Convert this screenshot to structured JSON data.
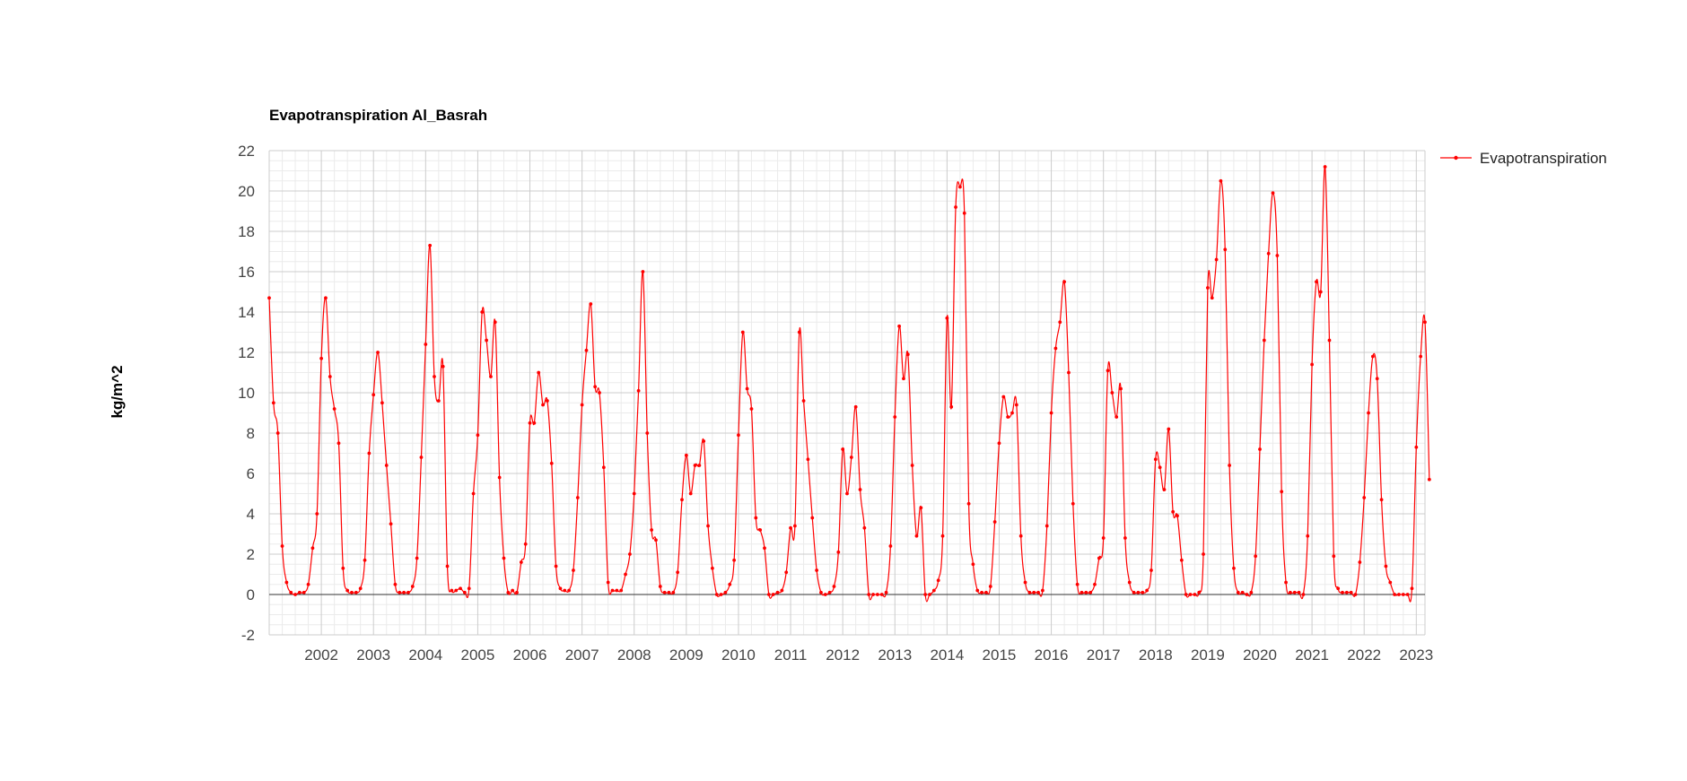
{
  "chart_data": {
    "type": "line",
    "title": "Evapotranspiration Al_Basrah",
    "ylabel": "kg/m^2",
    "xlabel": "",
    "x_ticks": [
      "2002",
      "2003",
      "2004",
      "2005",
      "2006",
      "2007",
      "2008",
      "2009",
      "2010",
      "2011",
      "2012",
      "2013",
      "2014",
      "2015",
      "2016",
      "2017",
      "2018",
      "2019",
      "2020",
      "2021",
      "2022",
      "2023"
    ],
    "y_ticks": [
      "-2",
      "0",
      "2",
      "4",
      "6",
      "8",
      "10",
      "12",
      "14",
      "16",
      "18",
      "20",
      "22"
    ],
    "ylim": [
      -2,
      22
    ],
    "xlim": [
      "2001-01-01",
      "2023-03-01"
    ],
    "grid": true,
    "legend_position": "right",
    "colors": {
      "series": "#ff0000",
      "grid_major": "#cccccc",
      "grid_minor": "#ebebeb",
      "zero_line": "#333333"
    },
    "series": [
      {
        "name": "Evapotranspiration",
        "x_start": "2001-01",
        "x_step": "month",
        "values": [
          14.7,
          9.5,
          8.0,
          2.4,
          0.6,
          0.1,
          0.0,
          0.1,
          0.1,
          0.5,
          2.3,
          4.0,
          11.7,
          14.7,
          10.8,
          9.2,
          7.5,
          1.3,
          0.2,
          0.1,
          0.1,
          0.3,
          1.7,
          7.0,
          9.9,
          12.0,
          9.5,
          6.4,
          3.5,
          0.5,
          0.1,
          0.1,
          0.1,
          0.4,
          1.8,
          6.8,
          12.4,
          17.3,
          10.8,
          9.6,
          11.3,
          1.4,
          0.2,
          0.2,
          0.3,
          0.1,
          0.3,
          5.0,
          7.9,
          14.0,
          12.6,
          10.8,
          13.5,
          5.8,
          1.8,
          0.1,
          0.2,
          0.1,
          1.6,
          2.5,
          8.5,
          8.5,
          11.0,
          9.4,
          9.6,
          6.5,
          1.4,
          0.3,
          0.2,
          0.2,
          1.2,
          4.8,
          9.4,
          12.1,
          14.4,
          10.3,
          10.0,
          6.3,
          0.6,
          0.2,
          0.2,
          0.2,
          1.0,
          2.0,
          5.0,
          10.1,
          16.0,
          8.0,
          3.2,
          2.7,
          0.4,
          0.1,
          0.1,
          0.1,
          1.1,
          4.7,
          6.9,
          5.0,
          6.4,
          6.4,
          7.6,
          3.4,
          1.3,
          0.0,
          0.0,
          0.1,
          0.5,
          1.7,
          7.9,
          13.0,
          10.2,
          9.2,
          3.8,
          3.2,
          2.3,
          0.0,
          0.0,
          0.1,
          0.2,
          1.1,
          3.3,
          3.4,
          13.0,
          9.6,
          6.7,
          3.8,
          1.2,
          0.1,
          0.0,
          0.1,
          0.4,
          2.1,
          7.2,
          5.0,
          6.8,
          9.3,
          5.2,
          3.3,
          0.0,
          0.0,
          0.0,
          0.0,
          0.1,
          2.4,
          8.8,
          13.3,
          10.7,
          11.9,
          6.4,
          2.9,
          4.3,
          0.0,
          0.0,
          0.2,
          0.7,
          2.9,
          13.7,
          9.3,
          19.2,
          20.2,
          18.9,
          4.5,
          1.5,
          0.2,
          0.1,
          0.1,
          0.4,
          3.6,
          7.5,
          9.8,
          8.8,
          9.0,
          9.4,
          2.9,
          0.6,
          0.1,
          0.1,
          0.1,
          0.2,
          3.4,
          9.0,
          12.2,
          13.5,
          15.5,
          11.0,
          4.5,
          0.5,
          0.1,
          0.1,
          0.1,
          0.5,
          1.8,
          2.8,
          11.1,
          10.0,
          8.8,
          10.2,
          2.8,
          0.6,
          0.1,
          0.1,
          0.1,
          0.2,
          1.2,
          6.7,
          6.3,
          5.2,
          8.2,
          4.1,
          3.9,
          1.7,
          0.0,
          0.0,
          0.0,
          0.1,
          2.0,
          15.2,
          14.7,
          16.6,
          20.5,
          17.1,
          6.4,
          1.3,
          0.1,
          0.1,
          0.0,
          0.1,
          1.9,
          7.2,
          12.6,
          16.9,
          19.9,
          16.8,
          5.1,
          0.6,
          0.1,
          0.1,
          0.1,
          0.0,
          2.9,
          11.4,
          15.5,
          15.0,
          21.2,
          12.6,
          1.9,
          0.3,
          0.1,
          0.1,
          0.1,
          0.0,
          1.6,
          4.8,
          9.0,
          11.8,
          10.7,
          4.7,
          1.4,
          0.6,
          0.0,
          0.0,
          0.0,
          0.0,
          0.3,
          7.3,
          11.8,
          13.5,
          5.7
        ]
      }
    ]
  }
}
